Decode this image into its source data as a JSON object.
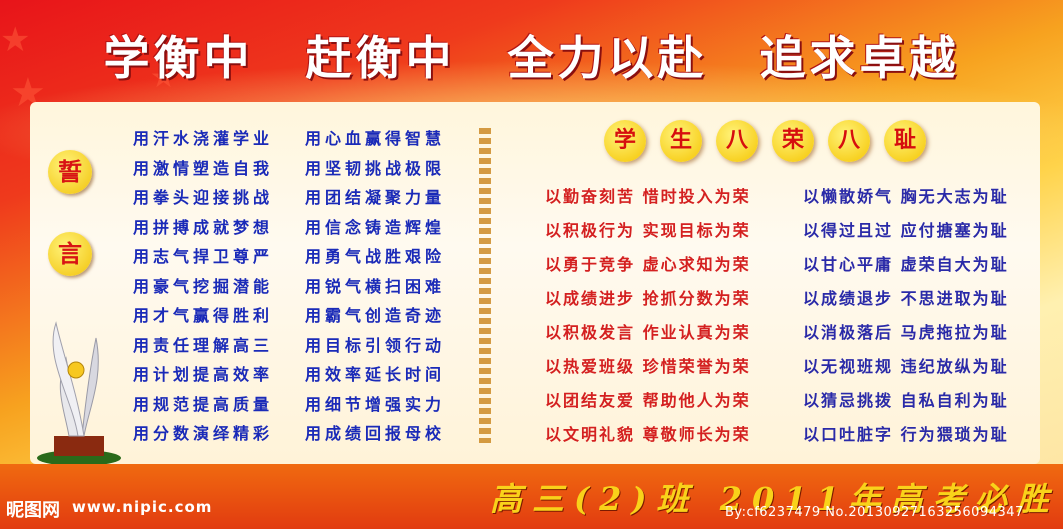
{
  "title": [
    "学衡中",
    "赶衡中",
    "全力以赴",
    "追求卓越"
  ],
  "oath_label": [
    "誓",
    "言"
  ],
  "oath_col1": [
    "用汗水浇灌学业",
    "用激情塑造自我",
    "用拳头迎接挑战",
    "用拼搏成就梦想",
    "用志气捍卫尊严",
    "用豪气挖掘潜能",
    "用才气赢得胜利",
    "用责任理解高三",
    "用计划提高效率",
    "用规范提高质量",
    "用分数演绎精彩"
  ],
  "oath_col2": [
    "用心血赢得智慧",
    "用坚韧挑战极限",
    "用团结凝聚力量",
    "用信念铸造辉煌",
    "用勇气战胜艰险",
    "用锐气横扫困难",
    "用霸气创造奇迹",
    "用目标引领行动",
    "用效率延长时间",
    "用细节增强实力",
    "用成绩回报母校"
  ],
  "honor_title": [
    "学",
    "生",
    "八",
    "荣",
    "八",
    "耻"
  ],
  "honors": [
    "以勤奋刻苦  惜时投入为荣",
    "以积极行为  实现目标为荣",
    "以勇于竞争  虚心求知为荣",
    "以成绩进步  抢抓分数为荣",
    "以积极发言  作业认真为荣",
    "以热爱班级  珍惜荣誉为荣",
    "以团结友爱  帮助他人为荣",
    "以文明礼貌  尊敬师长为荣"
  ],
  "shames": [
    "以懒散娇气  胸无大志为耻",
    "以得过且过  应付搪塞为耻",
    "以甘心平庸  虚荣自大为耻",
    "以成绩退步  不思进取为耻",
    "以消极落后  马虎拖拉为耻",
    "以无视班规  违纪放纵为耻",
    "以猜忌挑拨  自私自利为耻",
    "以口吐脏字  行为猥琐为耻"
  ],
  "footer_slogan": "高三(2)班 2011年高考必胜",
  "logo_text": "昵图网",
  "site_text": "www.nipic.com",
  "image_id": "By:cf6237479 No.20130927163256094347",
  "colors": {
    "red": "#e8141a",
    "blue": "#1a2ab8",
    "gold": "#f5c400"
  }
}
